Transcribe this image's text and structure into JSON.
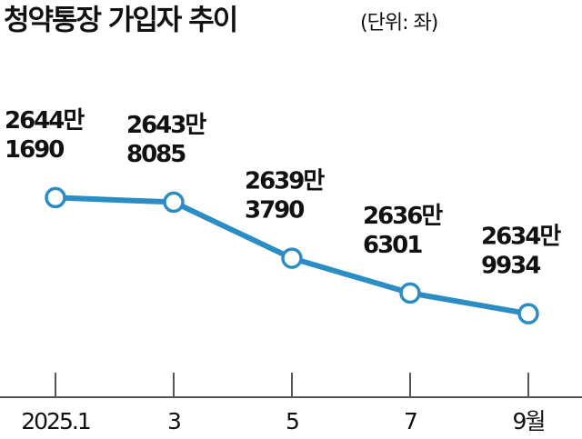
{
  "chart_data": {
    "type": "line",
    "title": "청약통장 가입자 추이",
    "subtitle": "(단위: 좌)",
    "categories": [
      "2025.1",
      "3",
      "5",
      "7",
      "9월"
    ],
    "values": [
      26441690,
      26438085,
      26393790,
      26366301,
      26349934
    ],
    "value_labels": [
      [
        "2644만",
        "1690"
      ],
      [
        "2643만",
        "8085"
      ],
      [
        "2639만",
        "3790"
      ],
      [
        "2636만",
        "6301"
      ],
      [
        "2634만",
        "9934"
      ]
    ],
    "color": "#2b8dc3",
    "ylim": [
      26284000,
      26526000
    ]
  }
}
